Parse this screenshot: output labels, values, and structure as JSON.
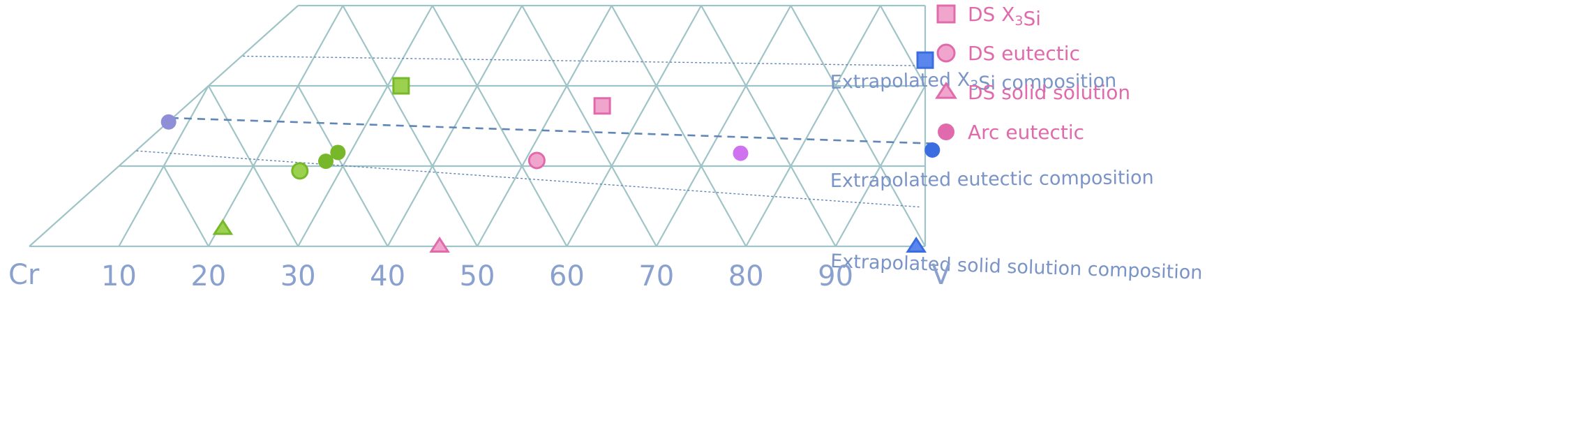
{
  "chart_data": {
    "type": "scatter",
    "diagram": "ternary-section",
    "x_axis": {
      "left_label": "Cr",
      "right_label": "V",
      "ticks": [
        10,
        20,
        30,
        40,
        50,
        60,
        70,
        80,
        90
      ],
      "range": [
        0,
        100
      ]
    },
    "grid": true,
    "annotations": [
      {
        "id": "x3si",
        "text_parts": [
          {
            "t": "Extrapolated X"
          },
          {
            "t": "3",
            "sub": true
          },
          {
            "t": "Si composition"
          }
        ]
      },
      {
        "id": "eutectic",
        "text_parts": [
          {
            "t": "Extrapolated eutectic composition"
          }
        ]
      },
      {
        "id": "solid",
        "text_parts": [
          {
            "t": "Extrapolated solid solution composition"
          }
        ]
      }
    ],
    "legend": {
      "placement": "right",
      "entries": [
        {
          "marker": "square",
          "text_parts": [
            {
              "t": "DS X"
            },
            {
              "t": "3",
              "sub": true
            },
            {
              "t": "Si"
            }
          ]
        },
        {
          "marker": "circle-open",
          "text_parts": [
            {
              "t": "DS eutectic"
            }
          ]
        },
        {
          "marker": "triangle",
          "text_parts": [
            {
              "t": "DS solid solution"
            }
          ]
        },
        {
          "marker": "circle-filled",
          "text_parts": [
            {
              "t": "Arc eutectic"
            }
          ]
        }
      ]
    },
    "colors": {
      "grid": "#9fc4c7",
      "pink": "#e06aab",
      "pink_fill": "#f0a6cc",
      "green": "#76b82a",
      "green_fill": "#9bd14f",
      "blue": "#3a6de0",
      "blue_fill": "#5b86ee",
      "purple_fill": "#8e8fd6",
      "magenta_fill": "#cf72f0",
      "annotation_line": "#5f86b6"
    },
    "points": [
      {
        "series": "green",
        "marker": "square",
        "x": 31.5,
        "level": 2.0
      },
      {
        "series": "green",
        "marker": "circle-open",
        "x": 25.5,
        "level": 0.94
      },
      {
        "series": "green",
        "marker": "circle-filled",
        "x": 27.8,
        "level": 1.06
      },
      {
        "series": "green",
        "marker": "circle-filled",
        "x": 28.6,
        "level": 1.17
      },
      {
        "series": "green",
        "marker": "triangle",
        "x": 20.5,
        "level": 0.22
      },
      {
        "series": "pink",
        "marker": "square",
        "x": 55.2,
        "level": 1.75
      },
      {
        "series": "pink",
        "marker": "circle-open",
        "x": 51.3,
        "level": 1.07
      },
      {
        "series": "pink",
        "marker": "triangle",
        "x": 45.8,
        "level": 0.0
      },
      {
        "series": "blue",
        "marker": "square",
        "x": 88.4,
        "level": 2.32
      },
      {
        "series": "blue",
        "marker": "circle-filled",
        "x": 94.8,
        "level": 1.2
      },
      {
        "series": "blue",
        "marker": "triangle",
        "x": 99.0,
        "level": 0.0
      },
      {
        "series": "purple",
        "marker": "circle-filled",
        "x": 7.8,
        "level": 1.55
      },
      {
        "series": "magenta",
        "marker": "circle-filled",
        "x": 73.6,
        "level": 1.16
      }
    ],
    "lines": [
      {
        "id": "x3si",
        "style": "dotted",
        "from": {
          "x": 12.0,
          "level": 2.37
        },
        "to": {
          "x": 88.6,
          "level": 2.25
        }
      },
      {
        "id": "eutectic",
        "style": "dashed",
        "from": {
          "x": 7.8,
          "level": 1.6
        },
        "to": {
          "x": 94.8,
          "level": 1.28
        }
      },
      {
        "id": "solid",
        "style": "dotted",
        "from": {
          "x": 6.0,
          "level": 1.19
        },
        "to": {
          "x": 97.0,
          "level": 0.49
        }
      }
    ]
  }
}
